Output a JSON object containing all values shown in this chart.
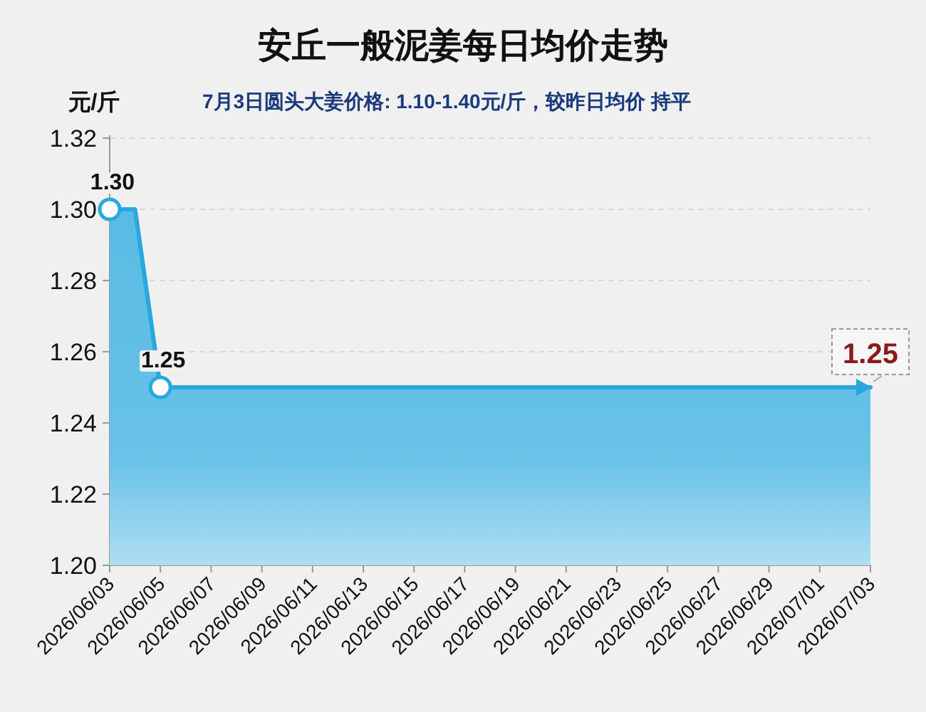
{
  "chart_data": {
    "type": "area",
    "title": "安丘一般泥姜每日均价走势",
    "subtitle": "7月3日圆头大姜价格: 1.10-1.40元/斤，较昨日均价 持平",
    "ylabel": "元/斤",
    "categories": [
      "2026/06/03",
      null,
      "2026/06/05",
      null,
      "2026/06/07",
      null,
      "2026/06/09",
      null,
      "2026/06/11",
      null,
      "2026/06/13",
      null,
      "2026/06/15",
      null,
      "2026/06/17",
      null,
      "2026/06/19",
      null,
      "2026/06/21",
      null,
      "2026/06/23",
      null,
      "2026/06/25",
      null,
      "2026/06/27",
      null,
      "2026/06/29",
      null,
      "2026/07/01",
      null,
      "2026/07/03"
    ],
    "series": [
      {
        "color": "#29a8dc",
        "line_style": "solid",
        "values": [
          1.3,
          1.3,
          1.25,
          1.25,
          1.25,
          1.25,
          1.25,
          1.25,
          1.25,
          1.25,
          1.25,
          1.25,
          1.25,
          1.25,
          1.25,
          1.25,
          1.25,
          1.25,
          1.25,
          1.25,
          1.25,
          1.25,
          1.25,
          1.25,
          1.25,
          1.25,
          1.25,
          1.25,
          1.25,
          1.25,
          1.25
        ]
      },
      {
        "type": "scatter",
        "color": "#29a8dc",
        "marker": "circle",
        "x": [
          "2026/06/03",
          "2026/06/05"
        ],
        "values": [
          1.3,
          1.25
        ],
        "value_labels": [
          "1.30",
          "1.25"
        ]
      }
    ],
    "grid": "y",
    "ylim": [
      1.2,
      1.32
    ],
    "yticks": [
      {
        "value": 1.2,
        "label": "1.20"
      },
      {
        "value": 1.22,
        "label": "1.22"
      },
      {
        "value": 1.24,
        "label": "1.24"
      },
      {
        "value": 1.26,
        "label": "1.26"
      },
      {
        "value": 1.28,
        "label": "1.28"
      },
      {
        "value": 1.3,
        "label": "1.30"
      },
      {
        "value": 1.32,
        "label": "1.32"
      }
    ],
    "annotations": [
      {
        "text": "1.25",
        "x": "2026/07/03",
        "y": 1.25
      }
    ]
  }
}
